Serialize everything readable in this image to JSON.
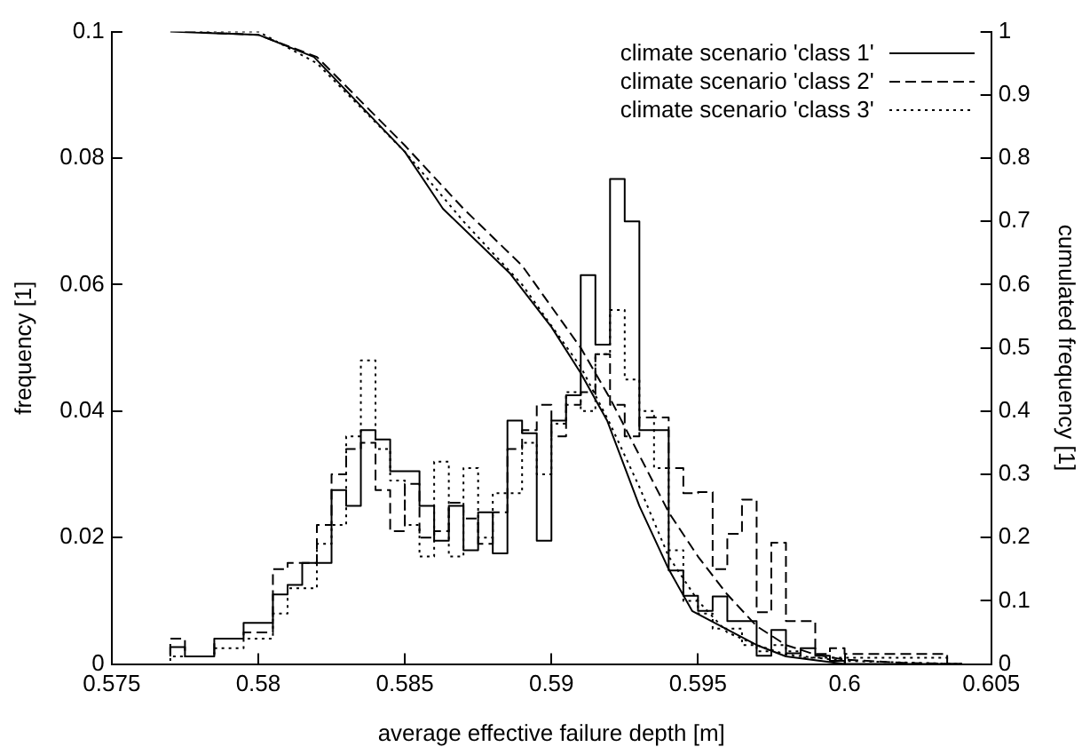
{
  "chart_data": {
    "type": "step",
    "xlabel": "average effective failure depth [m]",
    "ylabel": "frequency [1]",
    "y2label": "cumulated frequency [1]",
    "x": [
      0.577,
      0.5775,
      0.578,
      0.5785,
      0.579,
      0.5795,
      0.58,
      0.5805,
      0.581,
      0.5815,
      0.582,
      0.5825,
      0.583,
      0.5835,
      0.584,
      0.5845,
      0.585,
      0.5855,
      0.586,
      0.5865,
      0.587,
      0.5875,
      0.588,
      0.5885,
      0.589,
      0.5895,
      0.59,
      0.5905,
      0.591,
      0.5915,
      0.592,
      0.5925,
      0.593,
      0.5935,
      0.594,
      0.5945,
      0.595,
      0.5955,
      0.596,
      0.5965,
      0.597,
      0.5975,
      0.598,
      0.5985,
      0.599,
      0.5995,
      0.6,
      0.6005,
      0.601,
      0.6015,
      0.602,
      0.6025,
      0.603,
      0.6035,
      0.604
    ],
    "series": [
      {
        "color": "#000000",
        "line_style": "solid",
        "values": [
          0.0012,
          0.0027,
          0.0012,
          0.0012,
          0.004,
          0.004,
          0.0065,
          0.0065,
          0.011,
          0.0125,
          0.016,
          0.016,
          0.0275,
          0.025,
          0.037,
          0.0355,
          0.0305,
          0.0305,
          0.025,
          0.0195,
          0.025,
          0.018,
          0.024,
          0.0175,
          0.0385,
          0.0365,
          0.0195,
          0.0385,
          0.0425,
          0.0615,
          0.0505,
          0.0767,
          0.07,
          0.037,
          0.037,
          0.0148,
          0.0108,
          0.0084,
          0.0107,
          0.0068,
          0.0068,
          0.0013,
          0.0054,
          0.0017,
          0.0025,
          0.0013,
          0.0005,
          0,
          0,
          0,
          0,
          0,
          0,
          0,
          0
        ]
      },
      {
        "color": "#000000",
        "line_style": "dashed",
        "values": [
          0.0015,
          0.004,
          0.0012,
          0.0012,
          0.004,
          0.004,
          0.005,
          0.005,
          0.015,
          0.016,
          0.016,
          0.022,
          0.03,
          0.034,
          0.035,
          0.0275,
          0.021,
          0.0285,
          0.02,
          0.021,
          0.0255,
          0.023,
          0.019,
          0.024,
          0.034,
          0.037,
          0.041,
          0.036,
          0.041,
          0.043,
          0.049,
          0.041,
          0.036,
          0.039,
          0.039,
          0.031,
          0.027,
          0.0272,
          0.015,
          0.0206,
          0.026,
          0.0082,
          0.0192,
          0.0068,
          0.0068,
          0.0016,
          0.0025,
          0.0016,
          0.0016,
          0.0016,
          0.0016,
          0.0016,
          0.0016,
          0.0016,
          0
        ]
      },
      {
        "color": "#000000",
        "line_style": "dotted",
        "values": [
          0.0005,
          0.0012,
          0.0012,
          0.0012,
          0.0025,
          0.0025,
          0.004,
          0.004,
          0.008,
          0.012,
          0.012,
          0.019,
          0.022,
          0.036,
          0.048,
          0.034,
          0.029,
          0.022,
          0.017,
          0.032,
          0.017,
          0.031,
          0.02,
          0.027,
          0.027,
          0.035,
          0.03,
          0.038,
          0.043,
          0.04,
          0.049,
          0.056,
          0.045,
          0.04,
          0.031,
          0.018,
          0.01,
          0.008,
          0.0056,
          0.0056,
          0.003,
          0.002,
          0.003,
          0.002,
          0.001,
          0.001,
          0.001,
          0.001,
          0.001,
          0.001,
          0.001,
          0.001,
          0.001,
          0.001,
          0
        ]
      },
      {
        "name": "climate scenario 'class 1'",
        "type": "line",
        "axis": "y2",
        "color": "#000000",
        "line_style": "solid",
        "x": [
          0.577,
          0.58,
          0.5819,
          0.585,
          0.5863,
          0.5886,
          0.59,
          0.591,
          0.5919,
          0.593,
          0.594,
          0.5948,
          0.597,
          0.598,
          0.6
        ],
        "values": [
          1,
          0.995,
          0.96,
          0.81,
          0.72,
          0.617,
          0.533,
          0.46,
          0.385,
          0.25,
          0.15,
          0.084,
          0.03,
          0.012,
          0
        ]
      },
      {
        "name": "climate scenario 'class 2'",
        "type": "line",
        "axis": "y2",
        "color": "#000000",
        "line_style": "dashed",
        "x": [
          0.5775,
          0.58,
          0.582,
          0.585,
          0.587,
          0.589,
          0.591,
          0.592,
          0.593,
          0.594,
          0.595,
          0.596,
          0.597,
          0.598,
          0.599,
          0.6,
          0.602,
          0.604
        ],
        "values": [
          1,
          0.995,
          0.96,
          0.82,
          0.72,
          0.63,
          0.5,
          0.42,
          0.33,
          0.24,
          0.17,
          0.11,
          0.06,
          0.03,
          0.015,
          0.007,
          0.002,
          0
        ]
      },
      {
        "name": "climate scenario 'class 3'",
        "type": "line",
        "axis": "y2",
        "color": "#000000",
        "line_style": "dotted",
        "x": [
          0.578,
          0.58,
          0.582,
          0.585,
          0.587,
          0.589,
          0.591,
          0.592,
          0.593,
          0.594,
          0.595,
          0.596,
          0.597,
          0.598,
          0.6,
          0.604
        ],
        "values": [
          1,
          1,
          0.95,
          0.81,
          0.7,
          0.6,
          0.47,
          0.38,
          0.28,
          0.17,
          0.1,
          0.05,
          0.03,
          0.015,
          0.005,
          0
        ]
      }
    ],
    "xlim": [
      0.575,
      0.605
    ],
    "xticks": [
      0.575,
      0.58,
      0.585,
      0.59,
      0.595,
      0.6,
      0.605
    ],
    "ylim": [
      0,
      0.1
    ],
    "yticks": [
      0,
      0.02,
      0.04,
      0.06,
      0.08,
      0.1
    ],
    "y2lim": [
      0,
      1
    ],
    "y2ticks": [
      0,
      0.1,
      0.2,
      0.3,
      0.4,
      0.5,
      0.6,
      0.7,
      0.8,
      0.9,
      1
    ],
    "legend": "top right",
    "grid": false
  }
}
